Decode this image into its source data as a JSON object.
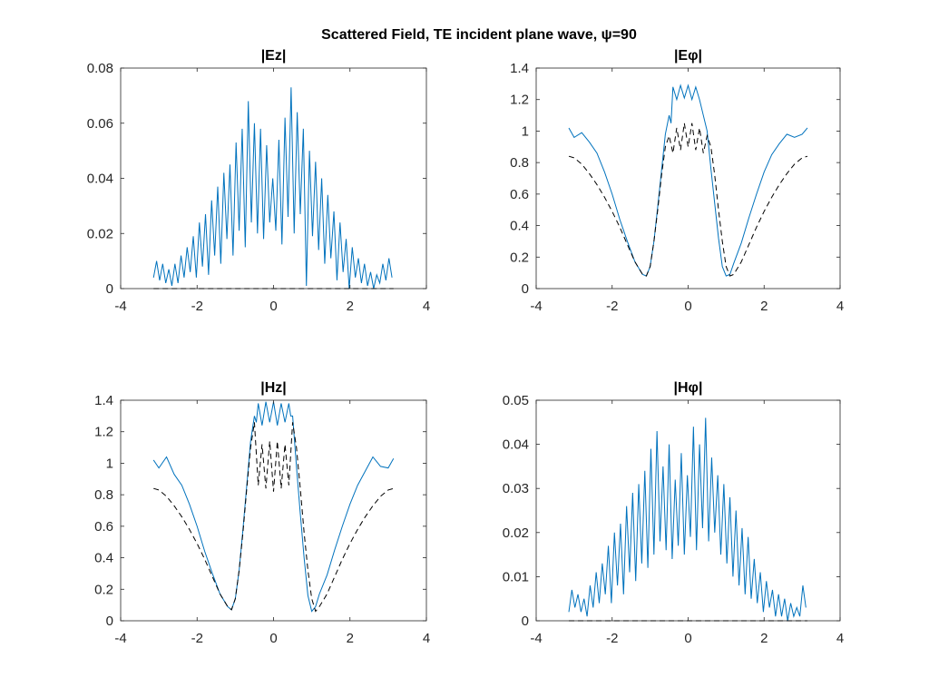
{
  "figure": {
    "suptitle": "Scattered Field, TE incident plane wave, ψ=90"
  },
  "colors": {
    "series_solid": "#0072BD",
    "series_dashed": "#000000",
    "axes": "#262626"
  },
  "chart_data": [
    {
      "type": "line",
      "title": "|Ez|",
      "xlim": [
        -4,
        4
      ],
      "ylim": [
        0,
        0.08
      ],
      "xticks": [
        "-4",
        "-2",
        "0",
        "2",
        "4"
      ],
      "yticks": [
        "0",
        "0.02",
        "0.04",
        "0.06",
        "0.08"
      ],
      "grid": false,
      "series": [
        {
          "style": "solid",
          "x": [
            -3.14,
            -3.06,
            -2.98,
            -2.9,
            -2.82,
            -2.74,
            -2.66,
            -2.58,
            -2.5,
            -2.42,
            -2.34,
            -2.26,
            -2.18,
            -2.1,
            -2.02,
            -1.94,
            -1.86,
            -1.78,
            -1.7,
            -1.62,
            -1.54,
            -1.46,
            -1.38,
            -1.3,
            -1.22,
            -1.14,
            -1.06,
            -0.98,
            -0.9,
            -0.82,
            -0.74,
            -0.66,
            -0.58,
            -0.5,
            -0.42,
            -0.34,
            -0.26,
            -0.18,
            -0.1,
            -0.02,
            0.06,
            0.14,
            0.22,
            0.3,
            0.38,
            0.46,
            0.54,
            0.62,
            0.7,
            0.78,
            0.86,
            0.94,
            1.02,
            1.1,
            1.18,
            1.26,
            1.34,
            1.42,
            1.5,
            1.58,
            1.66,
            1.74,
            1.82,
            1.9,
            1.98,
            2.06,
            2.14,
            2.22,
            2.3,
            2.38,
            2.46,
            2.54,
            2.62,
            2.7,
            2.78,
            2.86,
            2.94,
            3.02,
            3.1
          ],
          "y": [
            0.004,
            0.01,
            0.003,
            0.009,
            0.002,
            0.007,
            0.001,
            0.009,
            0.002,
            0.012,
            0.004,
            0.015,
            0.006,
            0.019,
            0.004,
            0.024,
            0.008,
            0.027,
            0.005,
            0.032,
            0.012,
            0.037,
            0.009,
            0.042,
            0.018,
            0.045,
            0.012,
            0.053,
            0.021,
            0.058,
            0.015,
            0.068,
            0.024,
            0.06,
            0.02,
            0.058,
            0.018,
            0.052,
            0.024,
            0.04,
            0.021,
            0.054,
            0.016,
            0.062,
            0.026,
            0.073,
            0.02,
            0.064,
            0.027,
            0.058,
            0.001,
            0.05,
            0.019,
            0.046,
            0.014,
            0.04,
            0.009,
            0.034,
            0.011,
            0.028,
            0.003,
            0.024,
            0.006,
            0.018,
            0.0,
            0.015,
            0.004,
            0.011,
            0.002,
            0.009,
            0.001,
            0.006,
            0.0,
            0.005,
            0.002,
            0.009,
            0.003,
            0.011,
            0.004
          ]
        },
        {
          "style": "dashed",
          "x": [
            -3.14,
            3.14
          ],
          "y": [
            0,
            0
          ]
        }
      ]
    },
    {
      "type": "line",
      "title": "|Eφ|",
      "xlim": [
        -4,
        4
      ],
      "ylim": [
        0,
        1.4
      ],
      "xticks": [
        "-4",
        "-2",
        "0",
        "2",
        "4"
      ],
      "yticks": [
        "0",
        "0.2",
        "0.4",
        "0.6",
        "0.8",
        "1",
        "1.2",
        "1.4"
      ],
      "grid": false,
      "series": [
        {
          "style": "solid",
          "x": [
            -3.14,
            -3.0,
            -2.8,
            -2.6,
            -2.4,
            -2.2,
            -2.0,
            -1.8,
            -1.6,
            -1.4,
            -1.2,
            -1.1,
            -1.0,
            -0.9,
            -0.8,
            -0.7,
            -0.6,
            -0.5,
            -0.45,
            -0.4,
            -0.3,
            -0.2,
            -0.1,
            0.0,
            0.1,
            0.2,
            0.3,
            0.4,
            0.45,
            0.5,
            0.6,
            0.7,
            0.8,
            0.9,
            1.0,
            1.1,
            1.2,
            1.4,
            1.6,
            1.8,
            2.0,
            2.2,
            2.4,
            2.6,
            2.8,
            3.0,
            3.14
          ],
          "y": [
            1.02,
            0.96,
            0.99,
            0.93,
            0.86,
            0.74,
            0.6,
            0.44,
            0.3,
            0.17,
            0.09,
            0.08,
            0.14,
            0.3,
            0.52,
            0.75,
            0.98,
            1.1,
            1.05,
            1.28,
            1.2,
            1.29,
            1.21,
            1.29,
            1.2,
            1.28,
            1.2,
            1.1,
            1.05,
            1.0,
            0.76,
            0.54,
            0.32,
            0.14,
            0.08,
            0.09,
            0.16,
            0.29,
            0.45,
            0.6,
            0.74,
            0.85,
            0.92,
            0.98,
            0.96,
            0.98,
            1.02
          ]
        },
        {
          "style": "dashed",
          "x": [
            -3.14,
            -3.0,
            -2.8,
            -2.6,
            -2.4,
            -2.2,
            -2.0,
            -1.8,
            -1.6,
            -1.4,
            -1.2,
            -1.1,
            -1.0,
            -0.9,
            -0.8,
            -0.7,
            -0.6,
            -0.5,
            -0.4,
            -0.3,
            -0.2,
            -0.1,
            0.0,
            0.1,
            0.2,
            0.3,
            0.4,
            0.5,
            0.6,
            0.7,
            0.8,
            0.9,
            1.0,
            1.1,
            1.2,
            1.4,
            1.6,
            1.8,
            2.0,
            2.2,
            2.4,
            2.6,
            2.8,
            3.0,
            3.14
          ],
          "y": [
            0.84,
            0.83,
            0.79,
            0.73,
            0.66,
            0.58,
            0.49,
            0.39,
            0.28,
            0.17,
            0.09,
            0.08,
            0.14,
            0.3,
            0.5,
            0.72,
            0.9,
            0.97,
            0.86,
            1.02,
            0.88,
            1.05,
            0.9,
            1.05,
            0.88,
            1.02,
            0.86,
            0.97,
            0.9,
            0.72,
            0.5,
            0.3,
            0.14,
            0.08,
            0.09,
            0.17,
            0.28,
            0.39,
            0.49,
            0.58,
            0.66,
            0.73,
            0.79,
            0.83,
            0.84
          ]
        }
      ]
    },
    {
      "type": "line",
      "title": "|Hz|",
      "xlim": [
        -4,
        4
      ],
      "ylim": [
        0,
        1.4
      ],
      "xticks": [
        "-4",
        "-2",
        "0",
        "2",
        "4"
      ],
      "yticks": [
        "0",
        "0.2",
        "0.4",
        "0.6",
        "0.8",
        "1",
        "1.2",
        "1.4"
      ],
      "grid": false,
      "series": [
        {
          "style": "solid",
          "x": [
            -3.14,
            -3.0,
            -2.8,
            -2.6,
            -2.4,
            -2.2,
            -2.0,
            -1.8,
            -1.6,
            -1.4,
            -1.2,
            -1.1,
            -1.0,
            -0.9,
            -0.8,
            -0.7,
            -0.6,
            -0.5,
            -0.45,
            -0.4,
            -0.3,
            -0.2,
            -0.1,
            0.0,
            0.1,
            0.2,
            0.3,
            0.4,
            0.45,
            0.5,
            0.6,
            0.7,
            0.8,
            0.9,
            1.0,
            1.1,
            1.2,
            1.4,
            1.6,
            1.8,
            2.0,
            2.2,
            2.4,
            2.6,
            2.8,
            3.0,
            3.14
          ],
          "y": [
            1.02,
            0.97,
            1.04,
            0.93,
            0.86,
            0.74,
            0.6,
            0.44,
            0.3,
            0.17,
            0.09,
            0.07,
            0.14,
            0.32,
            0.58,
            0.86,
            1.14,
            1.3,
            1.26,
            1.38,
            1.24,
            1.39,
            1.26,
            1.39,
            1.24,
            1.38,
            1.26,
            1.38,
            1.3,
            1.3,
            0.98,
            0.68,
            0.4,
            0.16,
            0.06,
            0.09,
            0.17,
            0.29,
            0.45,
            0.6,
            0.74,
            0.86,
            0.95,
            1.04,
            0.98,
            0.97,
            1.03
          ]
        },
        {
          "style": "dashed",
          "x": [
            -3.14,
            -3.0,
            -2.8,
            -2.6,
            -2.4,
            -2.2,
            -2.0,
            -1.8,
            -1.6,
            -1.4,
            -1.2,
            -1.1,
            -1.0,
            -0.9,
            -0.8,
            -0.7,
            -0.6,
            -0.5,
            -0.4,
            -0.3,
            -0.2,
            -0.1,
            0.0,
            0.1,
            0.2,
            0.3,
            0.4,
            0.5,
            0.6,
            0.7,
            0.8,
            0.9,
            1.0,
            1.1,
            1.2,
            1.4,
            1.6,
            1.8,
            2.0,
            2.2,
            2.4,
            2.6,
            2.8,
            3.0,
            3.14
          ],
          "y": [
            0.84,
            0.83,
            0.79,
            0.73,
            0.66,
            0.58,
            0.49,
            0.39,
            0.28,
            0.17,
            0.09,
            0.07,
            0.14,
            0.32,
            0.56,
            0.84,
            1.1,
            1.26,
            0.86,
            1.12,
            0.84,
            1.14,
            0.82,
            1.14,
            0.84,
            1.12,
            0.86,
            1.26,
            1.1,
            0.84,
            0.56,
            0.32,
            0.14,
            0.06,
            0.09,
            0.17,
            0.28,
            0.39,
            0.49,
            0.58,
            0.66,
            0.73,
            0.79,
            0.83,
            0.84
          ]
        }
      ]
    },
    {
      "type": "line",
      "title": "|Hφ|",
      "xlim": [
        -4,
        4
      ],
      "ylim": [
        0,
        0.05
      ],
      "xticks": [
        "-4",
        "-2",
        "0",
        "2",
        "4"
      ],
      "yticks": [
        "0",
        "0.01",
        "0.02",
        "0.03",
        "0.04",
        "0.05"
      ],
      "grid": false,
      "series": [
        {
          "style": "solid",
          "x": [
            -3.14,
            -3.06,
            -2.98,
            -2.9,
            -2.82,
            -2.74,
            -2.66,
            -2.58,
            -2.5,
            -2.42,
            -2.34,
            -2.26,
            -2.18,
            -2.1,
            -2.02,
            -1.94,
            -1.86,
            -1.78,
            -1.7,
            -1.62,
            -1.54,
            -1.46,
            -1.38,
            -1.3,
            -1.22,
            -1.14,
            -1.06,
            -0.98,
            -0.9,
            -0.82,
            -0.74,
            -0.66,
            -0.58,
            -0.5,
            -0.42,
            -0.34,
            -0.26,
            -0.18,
            -0.1,
            -0.02,
            0.06,
            0.14,
            0.22,
            0.3,
            0.38,
            0.46,
            0.54,
            0.62,
            0.7,
            0.78,
            0.86,
            0.94,
            1.02,
            1.1,
            1.18,
            1.26,
            1.34,
            1.42,
            1.5,
            1.58,
            1.66,
            1.74,
            1.82,
            1.9,
            1.98,
            2.06,
            2.14,
            2.22,
            2.3,
            2.38,
            2.46,
            2.54,
            2.62,
            2.7,
            2.78,
            2.86,
            2.94,
            3.02,
            3.1
          ],
          "y": [
            0.002,
            0.007,
            0.003,
            0.006,
            0.002,
            0.005,
            0.001,
            0.008,
            0.003,
            0.011,
            0.004,
            0.013,
            0.006,
            0.017,
            0.004,
            0.02,
            0.008,
            0.022,
            0.006,
            0.026,
            0.011,
            0.029,
            0.009,
            0.031,
            0.013,
            0.034,
            0.012,
            0.039,
            0.015,
            0.043,
            0.018,
            0.035,
            0.016,
            0.04,
            0.014,
            0.032,
            0.017,
            0.038,
            0.015,
            0.033,
            0.019,
            0.044,
            0.016,
            0.04,
            0.021,
            0.046,
            0.018,
            0.037,
            0.02,
            0.033,
            0.015,
            0.031,
            0.013,
            0.028,
            0.01,
            0.025,
            0.008,
            0.021,
            0.006,
            0.019,
            0.005,
            0.014,
            0.004,
            0.011,
            0.002,
            0.009,
            0.003,
            0.007,
            0.001,
            0.006,
            0.001,
            0.005,
            0.0,
            0.004,
            0.001,
            0.003,
            0.001,
            0.008,
            0.003
          ]
        },
        {
          "style": "dashed",
          "x": [
            -3.14,
            3.14
          ],
          "y": [
            0,
            0
          ]
        }
      ]
    }
  ]
}
